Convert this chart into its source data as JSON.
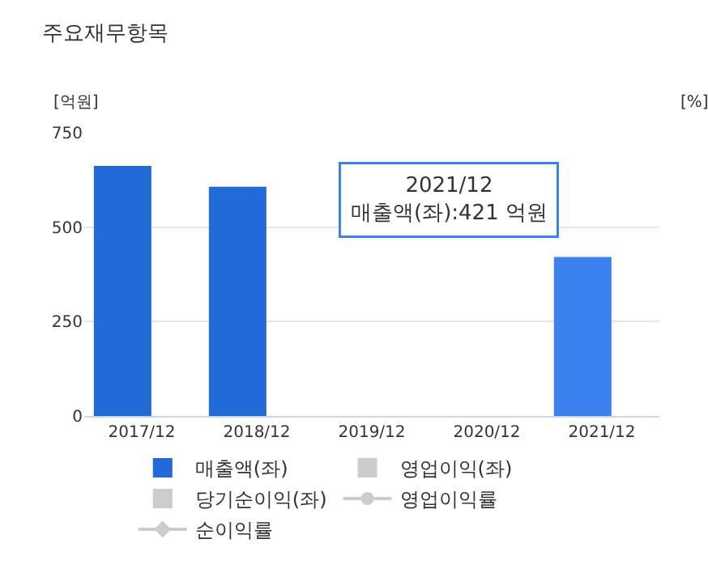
{
  "chart_data": {
    "type": "bar",
    "title": "주요재무항목",
    "ylabel": "[억원]",
    "y2label": "[%]",
    "categories": [
      "2017/12",
      "2018/12",
      "2019/12",
      "2020/12",
      "2021/12"
    ],
    "series": [
      {
        "name": "매출액(좌)",
        "color": "#236ad9",
        "colors": [
          "#236ad9",
          "#236ad9",
          "#236ad9",
          "#236ad9",
          "#3b82f0"
        ],
        "values": [
          662,
          607,
          null,
          null,
          421
        ]
      },
      {
        "name": "영업이익(좌)",
        "color": "#cccccc",
        "values": [
          null,
          null,
          null,
          null,
          null
        ]
      },
      {
        "name": "당기순이익(좌)",
        "color": "#cccccc",
        "values": [
          null,
          null,
          null,
          null,
          null
        ]
      },
      {
        "name": "영업이익률",
        "type": "line",
        "marker": "circle",
        "color": "#cccccc",
        "values": [
          null,
          null,
          null,
          null,
          null
        ]
      },
      {
        "name": "순이익률",
        "type": "line",
        "marker": "diamond",
        "color": "#cccccc",
        "values": [
          null,
          null,
          null,
          null,
          null
        ]
      }
    ],
    "ylim": [
      0,
      750
    ],
    "yticks": [
      0,
      250,
      500,
      750
    ],
    "grid": "y",
    "legend": "bottom",
    "annotations": [
      {
        "text": "2021/12\n매출액(좌):421 억원",
        "x": "2021/12",
        "y": 421
      }
    ]
  }
}
